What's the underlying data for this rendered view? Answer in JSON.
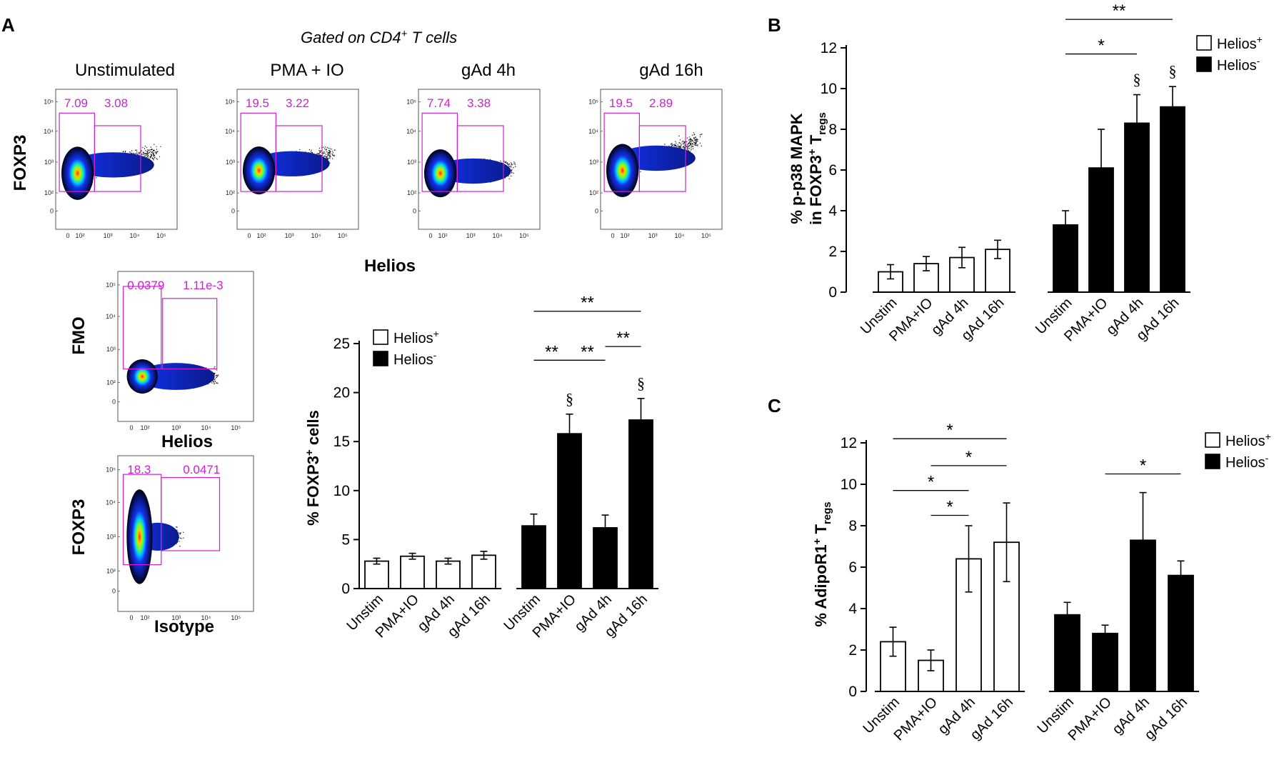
{
  "panels": {
    "a": "A",
    "b": "B",
    "c": "C"
  },
  "flow": {
    "gated_label": "Gated on CD4",
    "gated_sup": "+",
    "gated_suffix": " T cells",
    "x_label": "Helios",
    "y_label": "FOXP3",
    "axis_ticks": [
      "0",
      "10²",
      "10³",
      "10⁴",
      "10⁵"
    ],
    "plots": [
      {
        "title": "Unstimulated",
        "gate_left": "7.09",
        "gate_right": "3.08"
      },
      {
        "title": "PMA + IO",
        "gate_left": "19.5",
        "gate_right": "3.22"
      },
      {
        "title": "gAd 4h",
        "gate_left": "7.74",
        "gate_right": "3.38"
      },
      {
        "title": "gAd 16h",
        "gate_left": "19.5",
        "gate_right": "2.89"
      }
    ],
    "fmo": {
      "y_label": "FMO",
      "x_label": "Helios",
      "gate_left": "0.0379",
      "gate_right": "1.11e-3"
    },
    "isotype": {
      "y_label": "FOXP3",
      "x_label": "Isotype",
      "gate_left": "18.3",
      "gate_right": "0.0471"
    }
  },
  "legend": {
    "pos_label": "Helios",
    "pos_sup": "+",
    "neg_label": "Helios",
    "neg_sup": "-"
  },
  "chart_data": [
    {
      "id": "A",
      "type": "bar",
      "ylabel_pre": "% FOXP3",
      "ylabel_sup": "+",
      "ylabel_post": " cells",
      "ylim": [
        0,
        25
      ],
      "yticks": [
        0,
        5,
        10,
        15,
        20,
        25
      ],
      "categories": [
        "Unstim",
        "PMA+IO",
        "gAd 4h",
        "gAd 16h"
      ],
      "series": [
        {
          "name": "Helios+",
          "fill": "#ffffff",
          "values": [
            2.8,
            3.3,
            2.8,
            3.4
          ],
          "errors": [
            0.3,
            0.3,
            0.3,
            0.4
          ]
        },
        {
          "name": "Helios-",
          "fill": "#000000",
          "values": [
            6.4,
            15.8,
            6.2,
            17.2
          ],
          "errors": [
            1.2,
            2.0,
            1.3,
            2.2
          ]
        }
      ],
      "significance": [
        {
          "label": "**",
          "series": 1,
          "from": 0,
          "to": 1,
          "y": 23.3
        },
        {
          "label": "**",
          "series": 1,
          "from": 1,
          "to": 2,
          "y": 23.3
        },
        {
          "label": "**",
          "series": 1,
          "from": 2,
          "to": 3,
          "y": 24.7
        },
        {
          "label": "**",
          "series": 1,
          "from": 0,
          "to": 3,
          "y": 28.3
        }
      ],
      "markers": [
        {
          "label": "§",
          "series": 1,
          "index": 1
        },
        {
          "label": "§",
          "series": 1,
          "index": 3
        }
      ]
    },
    {
      "id": "B",
      "type": "bar",
      "ylabel_line1": "% p-p38 MAPK",
      "ylabel_line2_pre": "in FOXP3",
      "ylabel_line2_sup": "+",
      "ylabel_line2_mid": " T",
      "ylabel_line2_sub": "regs",
      "ylim": [
        0,
        12
      ],
      "yticks": [
        0,
        2,
        4,
        6,
        8,
        10,
        12
      ],
      "categories": [
        "Unstim",
        "PMA+IO",
        "gAd 4h",
        "gAd 16h"
      ],
      "series": [
        {
          "name": "Helios+",
          "fill": "#ffffff",
          "values": [
            1.0,
            1.4,
            1.7,
            2.1
          ],
          "errors": [
            0.35,
            0.35,
            0.5,
            0.45
          ]
        },
        {
          "name": "Helios-",
          "fill": "#000000",
          "values": [
            3.3,
            6.1,
            8.3,
            9.1
          ],
          "errors": [
            0.7,
            1.9,
            1.4,
            1.0
          ]
        }
      ],
      "significance": [
        {
          "label": "*",
          "series": 1,
          "from": 0,
          "to": 2,
          "y": 11.7
        },
        {
          "label": "**",
          "series": 1,
          "from": 0,
          "to": 3,
          "y": 13.4
        }
      ],
      "markers": [
        {
          "label": "§",
          "series": 1,
          "index": 2
        },
        {
          "label": "§",
          "series": 1,
          "index": 3
        }
      ]
    },
    {
      "id": "C",
      "type": "bar",
      "ylabel_pre": "% AdipoR1",
      "ylabel_sup": "+",
      "ylabel_mid": " T",
      "ylabel_sub": "regs",
      "ylim": [
        0,
        12
      ],
      "yticks": [
        0,
        2,
        4,
        6,
        8,
        10,
        12
      ],
      "categories": [
        "Unstim",
        "PMA+IO",
        "gAd 4h",
        "gAd 16h"
      ],
      "series": [
        {
          "name": "Helios+",
          "fill": "#ffffff",
          "values": [
            2.4,
            1.5,
            6.4,
            7.2
          ],
          "errors": [
            0.7,
            0.5,
            1.6,
            1.9
          ]
        },
        {
          "name": "Helios-",
          "fill": "#000000",
          "values": [
            3.7,
            2.8,
            7.3,
            5.6
          ],
          "errors": [
            0.6,
            0.4,
            2.3,
            0.7
          ]
        }
      ],
      "significance": [
        {
          "label": "*",
          "series": 0,
          "from": 1,
          "to": 2,
          "y": 8.5
        },
        {
          "label": "*",
          "series": 0,
          "from": 0,
          "to": 2,
          "y": 9.7
        },
        {
          "label": "*",
          "series": 0,
          "from": 1,
          "to": 3,
          "y": 10.9
        },
        {
          "label": "*",
          "series": 0,
          "from": 0,
          "to": 3,
          "y": 12.2
        },
        {
          "label": "*",
          "series": 1,
          "from": 1,
          "to": 3,
          "y": 10.5
        }
      ],
      "markers": []
    }
  ]
}
